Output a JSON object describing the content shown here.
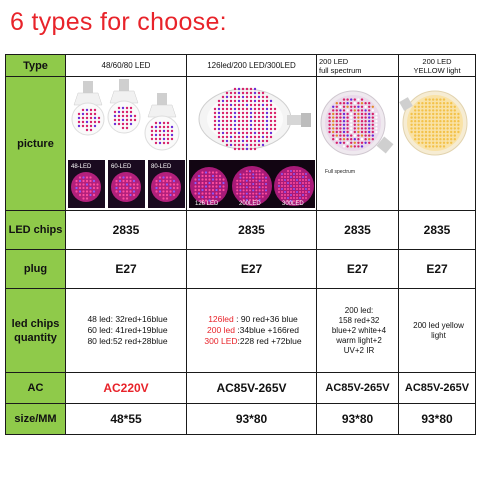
{
  "title": "6 types for choose:",
  "colors": {
    "title": "#e8232a",
    "label_bg": "#8fca4a",
    "accent_red": "#e8232a",
    "led_red": "#d8206a",
    "led_blue": "#6a2cd8",
    "led_yellow": "#f3c24a"
  },
  "rows": {
    "type": "Type",
    "picture": "picture",
    "led_chips": "LED chips",
    "plug": "plug",
    "quantity": "led chips quantity",
    "ac": "AC",
    "size": "size/MM"
  },
  "cols": [
    {
      "header": "48/60/80 LED",
      "chips": "2835",
      "plug": "E27",
      "ac": "AC220V",
      "size": "48*55",
      "labels": [
        "48-LED",
        "60-LED",
        "80-LED"
      ],
      "quantity": [
        "48 led: 32red+16blue",
        "60 led: 41red+19blue",
        "80 led:52 red+28blue"
      ]
    },
    {
      "header": "126led/200 LED/300LED",
      "chips": "2835",
      "plug": "E27",
      "ac": "AC85V-265V",
      "size": "93*80",
      "labels": [
        "126 LED",
        "200LED",
        "300LED"
      ],
      "quantity": [
        {
          "key": "126led",
          "val": " : 90 red+36 blue"
        },
        {
          "key": "200 led",
          "val": " :34blue +166red"
        },
        {
          "key": "300 LED",
          "val": ":228 red +72blue"
        }
      ]
    },
    {
      "header": "200 LED full spectrum",
      "header_line1": "200 LED",
      "header_line2": "full spectrum",
      "chips": "2835",
      "plug": "E27",
      "ac": "AC85V-265V",
      "size": "93*80",
      "label": "Full spectrum",
      "quantity": [
        "200 led:",
        "158 red+32",
        "blue+2 white+4",
        "warm light+2",
        "UV+2 IR"
      ]
    },
    {
      "header": "200 LED YELLOW light",
      "header_line1": "200 LED",
      "header_line2": "YELLOW light",
      "chips": "2835",
      "plug": "E27",
      "ac": "AC85V-265V",
      "size": "93*80",
      "quantity": [
        "200 led yellow",
        "light"
      ]
    }
  ]
}
